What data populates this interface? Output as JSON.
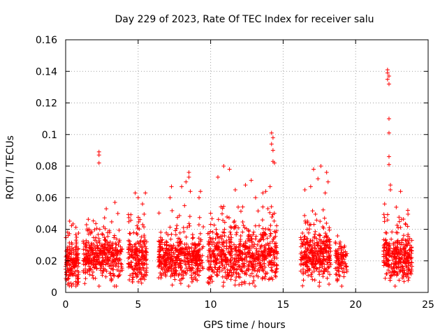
{
  "chart_data": {
    "type": "scatter",
    "title": "Day 229 of 2023, Rate Of TEC Index for receiver salu",
    "xlabel": "GPS time / hours",
    "ylabel": "ROTI / TECUs",
    "xlim": [
      0,
      25
    ],
    "ylim": [
      0,
      0.16
    ],
    "x_ticks": [
      0,
      5,
      10,
      15,
      20,
      25
    ],
    "x_tick_labels": [
      "0",
      "5",
      "10",
      "15",
      "20",
      "25"
    ],
    "y_ticks": [
      0,
      0.02,
      0.04,
      0.06,
      0.08,
      0.1,
      0.12,
      0.14,
      0.16
    ],
    "y_tick_labels": [
      "0",
      "0.02",
      "0.04",
      "0.06",
      "0.08",
      "0.1",
      "0.12",
      "0.14",
      "0.16"
    ],
    "grid": true,
    "marker": "+",
    "color": "#ff0000",
    "clusters": [
      {
        "x_range": [
          0.0,
          0.9
        ],
        "base": 0.019,
        "spread": 0.007,
        "max": 0.047,
        "count": 170
      },
      {
        "x_range": [
          1.2,
          3.0
        ],
        "base": 0.023,
        "spread": 0.007,
        "max": 0.048,
        "count": 260
      },
      {
        "x_range": [
          3.0,
          3.9
        ],
        "base": 0.021,
        "spread": 0.007,
        "max": 0.045,
        "count": 110
      },
      {
        "x_range": [
          4.3,
          5.6
        ],
        "base": 0.021,
        "spread": 0.007,
        "max": 0.05,
        "count": 200
      },
      {
        "x_range": [
          6.4,
          9.5
        ],
        "base": 0.022,
        "spread": 0.007,
        "max": 0.052,
        "count": 430
      },
      {
        "x_range": [
          9.8,
          14.6
        ],
        "base": 0.023,
        "spread": 0.008,
        "max": 0.055,
        "count": 650
      },
      {
        "x_range": [
          16.2,
          18.3
        ],
        "base": 0.024,
        "spread": 0.008,
        "max": 0.055,
        "count": 320
      },
      {
        "x_range": [
          18.6,
          19.4
        ],
        "base": 0.019,
        "spread": 0.006,
        "max": 0.036,
        "count": 90
      },
      {
        "x_range": [
          21.9,
          23.9
        ],
        "base": 0.022,
        "spread": 0.007,
        "max": 0.05,
        "count": 300
      }
    ],
    "outliers": [
      {
        "x": 2.3,
        "y": 0.089
      },
      {
        "x": 2.3,
        "y": 0.087
      },
      {
        "x": 2.3,
        "y": 0.082
      },
      {
        "x": 2.8,
        "y": 0.053
      },
      {
        "x": 3.4,
        "y": 0.057
      },
      {
        "x": 3.6,
        "y": 0.05
      },
      {
        "x": 4.8,
        "y": 0.063
      },
      {
        "x": 5.0,
        "y": 0.06
      },
      {
        "x": 5.5,
        "y": 0.063
      },
      {
        "x": 5.3,
        "y": 0.056
      },
      {
        "x": 7.3,
        "y": 0.067
      },
      {
        "x": 7.2,
        "y": 0.06
      },
      {
        "x": 8.0,
        "y": 0.067
      },
      {
        "x": 8.3,
        "y": 0.07
      },
      {
        "x": 8.5,
        "y": 0.076
      },
      {
        "x": 8.5,
        "y": 0.073
      },
      {
        "x": 8.6,
        "y": 0.064
      },
      {
        "x": 8.2,
        "y": 0.055
      },
      {
        "x": 9.2,
        "y": 0.06
      },
      {
        "x": 9.3,
        "y": 0.064
      },
      {
        "x": 10.5,
        "y": 0.073
      },
      {
        "x": 10.9,
        "y": 0.08
      },
      {
        "x": 11.3,
        "y": 0.078
      },
      {
        "x": 11.7,
        "y": 0.065
      },
      {
        "x": 12.4,
        "y": 0.068
      },
      {
        "x": 12.8,
        "y": 0.071
      },
      {
        "x": 13.1,
        "y": 0.06
      },
      {
        "x": 13.6,
        "y": 0.063
      },
      {
        "x": 14.2,
        "y": 0.101
      },
      {
        "x": 14.3,
        "y": 0.098
      },
      {
        "x": 14.2,
        "y": 0.094
      },
      {
        "x": 14.3,
        "y": 0.09
      },
      {
        "x": 14.3,
        "y": 0.083
      },
      {
        "x": 14.4,
        "y": 0.082
      },
      {
        "x": 14.1,
        "y": 0.067
      },
      {
        "x": 13.8,
        "y": 0.064
      },
      {
        "x": 16.9,
        "y": 0.067
      },
      {
        "x": 16.5,
        "y": 0.065
      },
      {
        "x": 17.1,
        "y": 0.078
      },
      {
        "x": 17.4,
        "y": 0.072
      },
      {
        "x": 17.6,
        "y": 0.08
      },
      {
        "x": 18.0,
        "y": 0.076
      },
      {
        "x": 18.1,
        "y": 0.07
      },
      {
        "x": 17.9,
        "y": 0.063
      },
      {
        "x": 22.2,
        "y": 0.141
      },
      {
        "x": 22.2,
        "y": 0.139
      },
      {
        "x": 22.3,
        "y": 0.137
      },
      {
        "x": 22.2,
        "y": 0.135
      },
      {
        "x": 22.3,
        "y": 0.132
      },
      {
        "x": 22.3,
        "y": 0.11
      },
      {
        "x": 22.3,
        "y": 0.101
      },
      {
        "x": 22.3,
        "y": 0.086
      },
      {
        "x": 22.3,
        "y": 0.081
      },
      {
        "x": 22.4,
        "y": 0.068
      },
      {
        "x": 22.4,
        "y": 0.065
      },
      {
        "x": 22.0,
        "y": 0.056
      },
      {
        "x": 22.8,
        "y": 0.054
      },
      {
        "x": 23.1,
        "y": 0.064
      },
      {
        "x": 23.6,
        "y": 0.052
      }
    ]
  }
}
